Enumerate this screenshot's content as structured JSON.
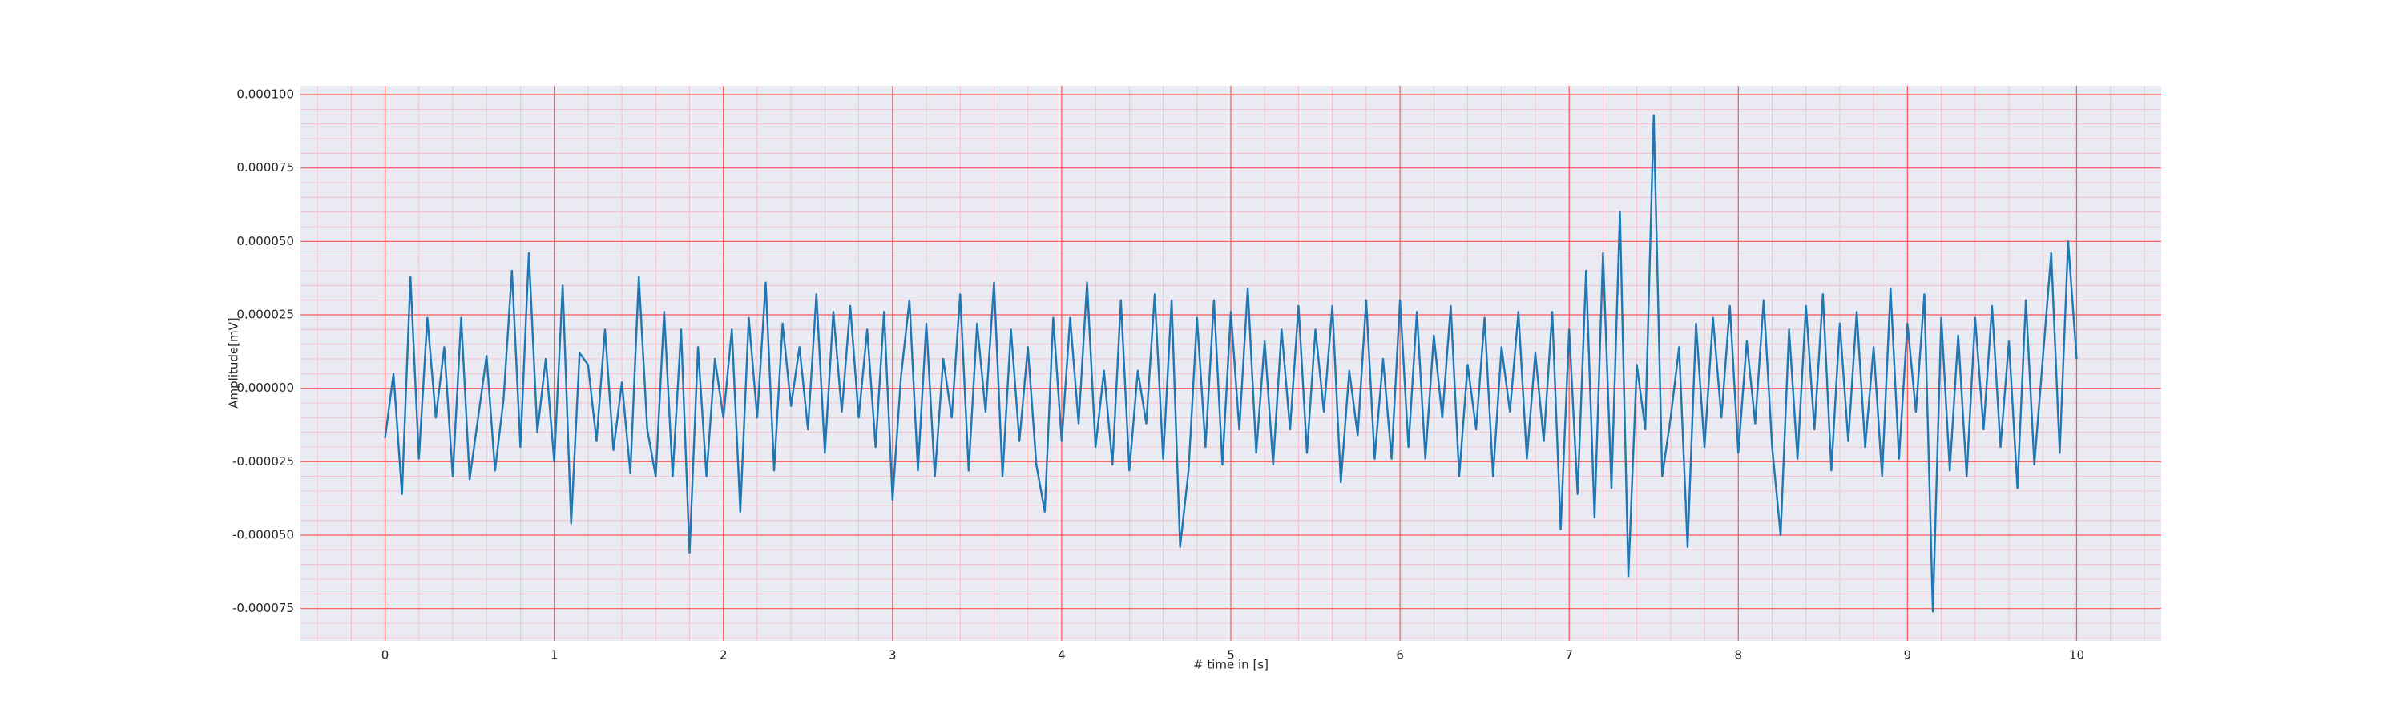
{
  "chart_data": {
    "type": "line",
    "x_label": "# time in [s]",
    "y_label": "Amplitude[mV]",
    "xlim": [
      -0.5,
      10.5
    ],
    "ylim": [
      -8.6e-05,
      0.000103
    ],
    "xticks": [
      0,
      1,
      2,
      3,
      4,
      5,
      6,
      7,
      8,
      9,
      10
    ],
    "yticks": [
      {
        "value": 0.0001,
        "label": "0.000100"
      },
      {
        "value": 7.5e-05,
        "label": "0.000075"
      },
      {
        "value": 5e-05,
        "label": "0.000050"
      },
      {
        "value": 2.5e-05,
        "label": "0.000025"
      },
      {
        "value": 0,
        "label": "0.000000"
      },
      {
        "value": -2.5e-05,
        "label": "-0.000025"
      },
      {
        "value": -5e-05,
        "label": "-0.000050"
      },
      {
        "value": -7.5e-05,
        "label": "-0.000075"
      }
    ],
    "grid": true,
    "minor_grid": true,
    "background": "#eaeaf2",
    "grid_color": "#ff5555",
    "minor_grid_color": "#f4b8c4",
    "x": [
      0,
      0.05,
      0.1,
      0.15,
      0.2,
      0.25,
      0.3,
      0.35,
      0.4,
      0.45,
      0.5,
      0.55,
      0.6,
      0.65,
      0.7,
      0.75,
      0.8,
      0.85,
      0.9,
      0.95,
      1,
      1.05,
      1.1,
      1.15,
      1.2,
      1.25,
      1.3,
      1.35,
      1.4,
      1.45,
      1.5,
      1.55,
      1.6,
      1.65,
      1.7,
      1.75,
      1.8,
      1.85,
      1.9,
      1.95,
      2,
      2.05,
      2.1,
      2.15,
      2.2,
      2.25,
      2.3,
      2.35,
      2.4,
      2.45,
      2.5,
      2.55,
      2.6,
      2.65,
      2.7,
      2.75,
      2.8,
      2.85,
      2.9,
      2.95,
      3,
      3.05,
      3.1,
      3.15,
      3.2,
      3.25,
      3.3,
      3.35,
      3.4,
      3.45,
      3.5,
      3.55,
      3.6,
      3.65,
      3.7,
      3.75,
      3.8,
      3.85,
      3.9,
      3.95,
      4,
      4.05,
      4.1,
      4.15,
      4.2,
      4.25,
      4.3,
      4.35,
      4.4,
      4.45,
      4.5,
      4.55,
      4.6,
      4.65,
      4.7,
      4.75,
      4.8,
      4.85,
      4.9,
      4.95,
      5,
      5.05,
      5.1,
      5.15,
      5.2,
      5.25,
      5.3,
      5.35,
      5.4,
      5.45,
      5.5,
      5.55,
      5.6,
      5.65,
      5.7,
      5.75,
      5.8,
      5.85,
      5.9,
      5.95,
      6,
      6.05,
      6.1,
      6.15,
      6.2,
      6.25,
      6.3,
      6.35,
      6.4,
      6.45,
      6.5,
      6.55,
      6.6,
      6.65,
      6.7,
      6.75,
      6.8,
      6.85,
      6.9,
      6.95,
      7,
      7.05,
      7.1,
      7.15,
      7.2,
      7.25,
      7.3,
      7.35,
      7.4,
      7.45,
      7.5,
      7.55,
      7.6,
      7.65,
      7.7,
      7.75,
      7.8,
      7.85,
      7.9,
      7.95,
      8,
      8.05,
      8.1,
      8.15,
      8.2,
      8.25,
      8.3,
      8.35,
      8.4,
      8.45,
      8.5,
      8.55,
      8.6,
      8.65,
      8.7,
      8.75,
      8.8,
      8.85,
      8.9,
      8.95,
      9,
      9.05,
      9.1,
      9.15,
      9.2,
      9.25,
      9.3,
      9.35,
      9.4,
      9.45,
      9.5,
      9.55,
      9.6,
      9.65,
      9.7,
      9.75,
      9.8,
      9.85,
      9.9,
      9.95,
      10
    ],
    "series": [
      {
        "color": "#1f77b4",
        "values": [
          -1.7e-05,
          5e-06,
          -3.6e-05,
          3.8e-05,
          -2.4e-05,
          2.4e-05,
          -1e-05,
          1.4e-05,
          -3e-05,
          2.4e-05,
          -3.1e-05,
          -1e-05,
          1.1e-05,
          -2.8e-05,
          -4e-06,
          4e-05,
          -2e-05,
          4.6e-05,
          -1.5e-05,
          1e-05,
          -2.5e-05,
          3.5e-05,
          -4.6e-05,
          1.2e-05,
          8e-06,
          -1.8e-05,
          2e-05,
          -2.1e-05,
          2e-06,
          -2.9e-05,
          3.8e-05,
          -1.4e-05,
          -3e-05,
          2.6e-05,
          -3e-05,
          2e-05,
          -5.6e-05,
          1.4e-05,
          -3e-05,
          1e-05,
          -1e-05,
          2e-05,
          -4.2e-05,
          2.4e-05,
          -1e-05,
          3.6e-05,
          -2.8e-05,
          2.2e-05,
          -6e-06,
          1.4e-05,
          -1.4e-05,
          3.2e-05,
          -2.2e-05,
          2.6e-05,
          -8e-06,
          2.8e-05,
          -1e-05,
          2e-05,
          -2e-05,
          2.6e-05,
          -3.8e-05,
          4e-06,
          3e-05,
          -2.8e-05,
          2.2e-05,
          -3e-05,
          1e-05,
          -1e-05,
          3.2e-05,
          -2.8e-05,
          2.2e-05,
          -8e-06,
          3.6e-05,
          -3e-05,
          2e-05,
          -1.8e-05,
          1.4e-05,
          -2.6e-05,
          -4.2e-05,
          2.4e-05,
          -1.8e-05,
          2.4e-05,
          -1.2e-05,
          3.6e-05,
          -2e-05,
          6e-06,
          -2.6e-05,
          3e-05,
          -2.8e-05,
          6e-06,
          -1.2e-05,
          3.2e-05,
          -2.4e-05,
          3e-05,
          -5.4e-05,
          -2.8e-05,
          2.4e-05,
          -2e-05,
          3e-05,
          -2.6e-05,
          2.6e-05,
          -1.4e-05,
          3.4e-05,
          -2.2e-05,
          1.6e-05,
          -2.6e-05,
          2e-05,
          -1.4e-05,
          2.8e-05,
          -2.2e-05,
          2e-05,
          -8e-06,
          2.8e-05,
          -3.2e-05,
          6e-06,
          -1.6e-05,
          3e-05,
          -2.4e-05,
          1e-05,
          -2.4e-05,
          3e-05,
          -2e-05,
          2.6e-05,
          -2.4e-05,
          1.8e-05,
          -1e-05,
          2.8e-05,
          -3e-05,
          8e-06,
          -1.4e-05,
          2.4e-05,
          -3e-05,
          1.4e-05,
          -8e-06,
          2.6e-05,
          -2.4e-05,
          1.2e-05,
          -1.8e-05,
          2.6e-05,
          -4.8e-05,
          2e-05,
          -3.6e-05,
          4e-05,
          -4.4e-05,
          4.6e-05,
          -3.4e-05,
          6e-05,
          -6.4e-05,
          8e-06,
          -1.4e-05,
          9.3e-05,
          -3e-05,
          -1e-05,
          1.4e-05,
          -5.4e-05,
          2.2e-05,
          -2e-05,
          2.4e-05,
          -1e-05,
          2.8e-05,
          -2.2e-05,
          1.6e-05,
          -1.2e-05,
          3e-05,
          -2e-05,
          -5e-05,
          2e-05,
          -2.4e-05,
          2.8e-05,
          -1.4e-05,
          3.2e-05,
          -2.8e-05,
          2.2e-05,
          -1.8e-05,
          2.6e-05,
          -2e-05,
          1.4e-05,
          -3e-05,
          3.4e-05,
          -2.4e-05,
          2.2e-05,
          -8e-06,
          3.2e-05,
          -7.6e-05,
          2.4e-05,
          -2.8e-05,
          1.8e-05,
          -3e-05,
          2.4e-05,
          -1.4e-05,
          2.8e-05,
          -2e-05,
          1.6e-05,
          -3.4e-05,
          3e-05,
          -2.6e-05,
          1e-05,
          4.6e-05,
          -2.2e-05,
          5e-05,
          1e-05
        ]
      }
    ]
  }
}
